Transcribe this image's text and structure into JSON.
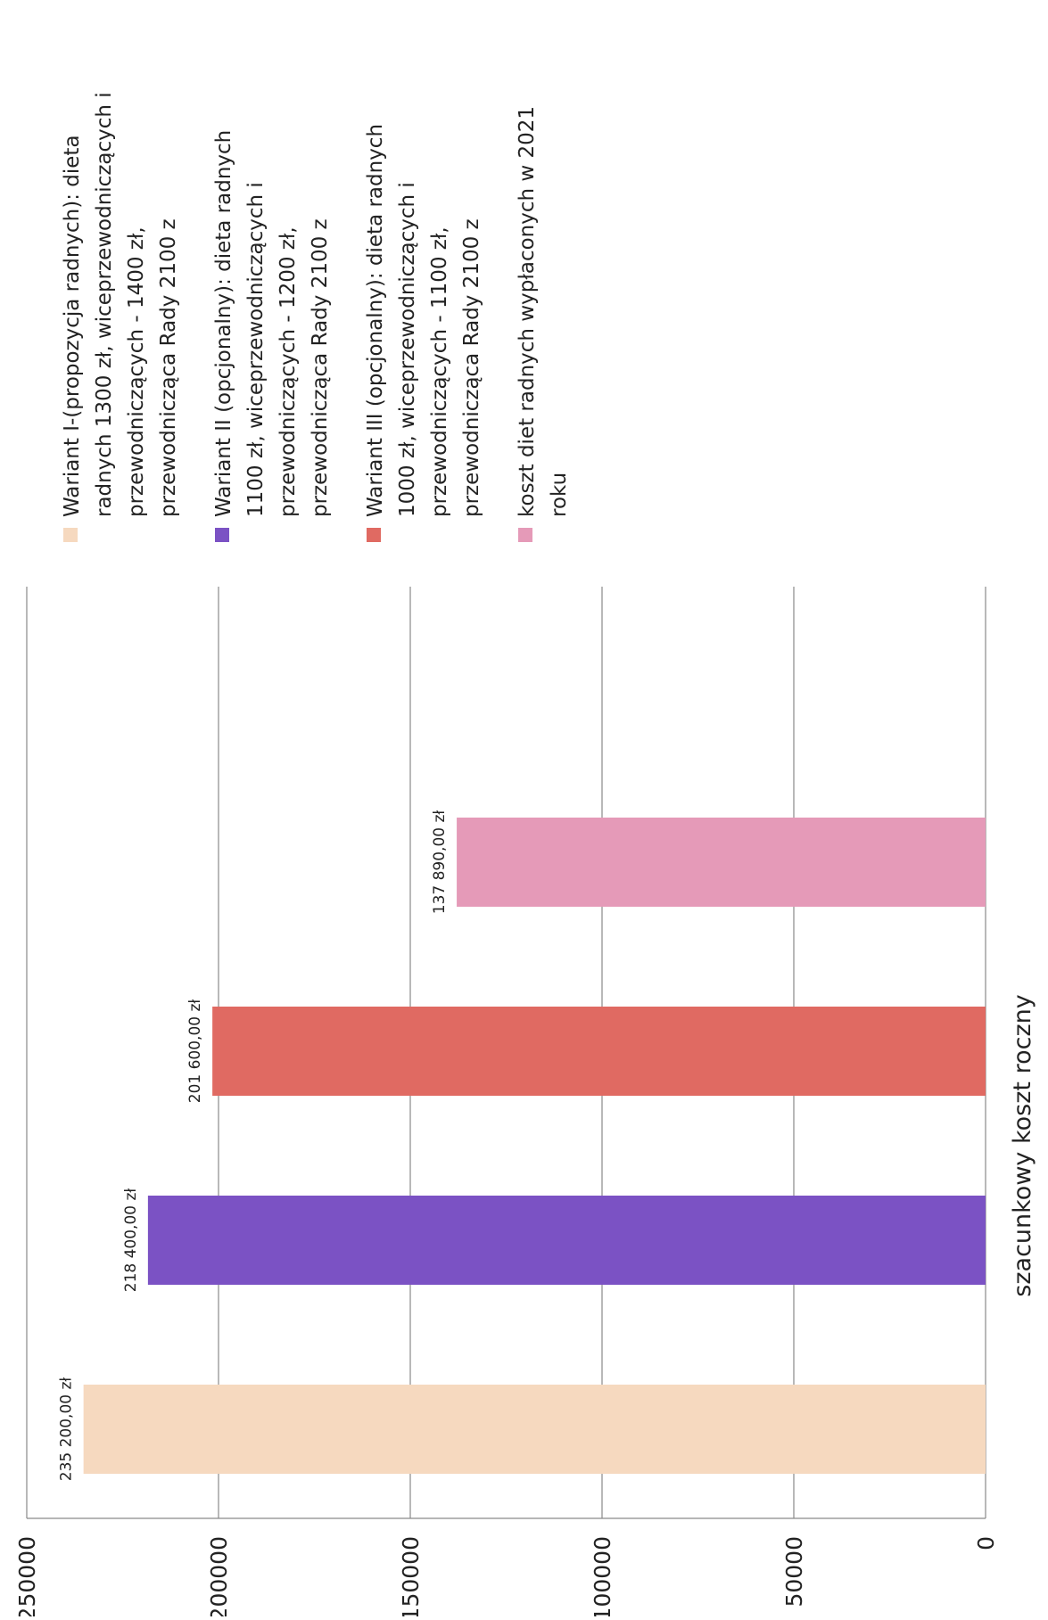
{
  "chart_data": {
    "type": "bar",
    "orientation": "vertical",
    "rotation": "page rotated 90 degrees counter-clockwise",
    "categories": [
      "szacunkowy koszt roczny"
    ],
    "xlabel": "szacunkowy koszt roczny",
    "ylabel": "",
    "ylim": [
      0,
      250000
    ],
    "yticks": [
      "0",
      "50000",
      "100000",
      "150000",
      "200000",
      "250000"
    ],
    "grid": true,
    "legend_position": "right",
    "series": [
      {
        "name": "Wariant I-(propozycja radnych): dieta radnych 1300 zł, wiceprzewodniczących i przewodniczących - 1400 zł, przewodnicząca Rady 2100 z",
        "legend_lines": [
          "Wariant I-(propozycja radnych): dieta",
          "radnych 1300 zł, wiceprzewodniczących i",
          "przewodniczących - 1400 zł,",
          "przewodnicząca Rady 2100 z"
        ],
        "value": 235200,
        "label": "235 200,00 zł",
        "color": "#f6d9bf"
      },
      {
        "name": "Wariant II (opcjonalny): dieta radnych 1100 zł, wiceprzewodniczących i przewodniczących - 1200 zł, przewodnicząca Rady 2100 z",
        "legend_lines": [
          "Wariant II (opcjonalny): dieta radnych",
          "1100 zł, wiceprzewodniczących i",
          "przewodniczących - 1200 zł,",
          "przewodnicząca Rady 2100 z"
        ],
        "value": 218400,
        "label": "218 400,00 zł",
        "color": "#7b52c4"
      },
      {
        "name": "Wariant III (opcjonalny): dieta radnych 1000 zł, wiceprzewodniczących i przewodniczących - 1100 zł, przewodnicząca Rady 2100 z",
        "legend_lines": [
          "Wariant III (opcjonalny): dieta radnych",
          "1000 zł, wiceprzewodniczących i",
          "przewodniczących - 1100 zł,",
          "przewodnicząca Rady 2100 z"
        ],
        "value": 201600,
        "label": "201 600,00 zł",
        "color": "#e06a62"
      },
      {
        "name": "koszt diet radnych wypłaconych w 2021 roku",
        "legend_lines": [
          "koszt diet radnych wypłaconych w 2021",
          "roku"
        ],
        "value": 137890,
        "label": "137 890,00 zł",
        "color": "#e59ab8"
      }
    ]
  }
}
